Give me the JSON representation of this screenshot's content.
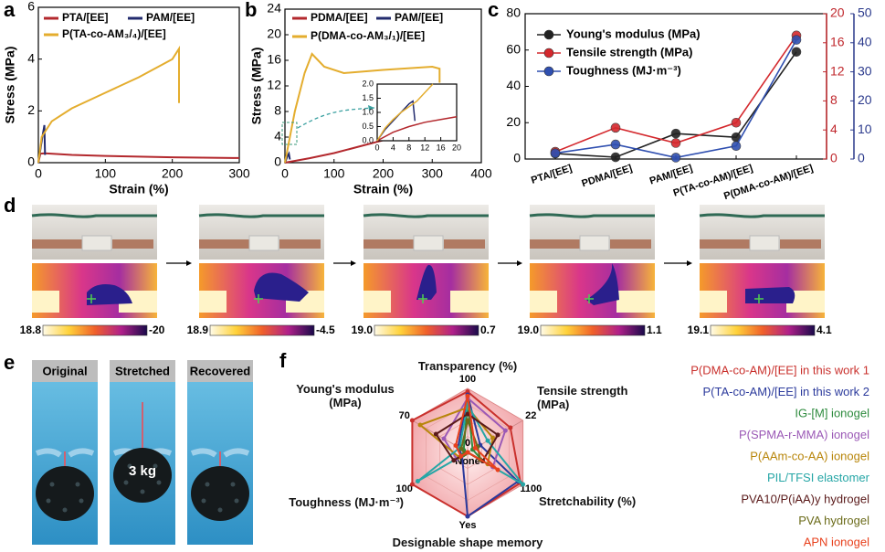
{
  "chart_data": [
    {
      "panel": "a",
      "type": "line",
      "xlabel": "Strain (%)",
      "ylabel": "Stress (MPa)",
      "xlim": [
        0,
        300
      ],
      "xticks": [
        0,
        100,
        200,
        300
      ],
      "ylim": [
        0,
        6
      ],
      "yticks": [
        0,
        2,
        4,
        6
      ],
      "legend": "upper left",
      "series": [
        {
          "name": "PTA/[EE]",
          "color": "#b3282d",
          "x": [
            0,
            3,
            10,
            50,
            100,
            200,
            300
          ],
          "values": [
            0,
            0.35,
            0.36,
            0.3,
            0.26,
            0.21,
            0.18
          ]
        },
        {
          "name": "PAM/[EE]",
          "color": "#222b6e",
          "x": [
            0,
            3,
            6,
            8,
            9,
            10
          ],
          "values": [
            0,
            0.5,
            1.0,
            1.3,
            1.45,
            0.3
          ]
        },
        {
          "name": "P(TA-co-AM₃/₄)/[EE]",
          "color": "#e4ad2e",
          "x": [
            0,
            5,
            20,
            50,
            100,
            150,
            200,
            210,
            210
          ],
          "values": [
            0,
            1.0,
            1.6,
            2.1,
            2.7,
            3.3,
            4.0,
            4.4,
            2.3
          ]
        }
      ]
    },
    {
      "panel": "b",
      "type": "line",
      "xlabel": "Strain (%)",
      "ylabel": "Stress (MPa)",
      "xlim": [
        0,
        400
      ],
      "xticks": [
        0,
        100,
        200,
        300,
        400
      ],
      "ylim": [
        0,
        24
      ],
      "yticks": [
        0,
        4,
        8,
        12,
        16,
        20,
        24
      ],
      "legend": "upper right",
      "series": [
        {
          "name": "PDMA/[EE]",
          "color": "#b3282d",
          "x": [
            0,
            50,
            100,
            150,
            200,
            215,
            215
          ],
          "values": [
            0,
            0.7,
            1.5,
            2.5,
            3.5,
            4.2,
            3.4
          ]
        },
        {
          "name": "PAM/[EE]",
          "color": "#222b6e",
          "x": [
            0,
            5,
            8,
            10
          ],
          "values": [
            0,
            1.0,
            1.4,
            0.5
          ]
        },
        {
          "name": "P(DMA-co-AM₃/₁)/[EE]",
          "color": "#e4ad2e",
          "x": [
            0,
            20,
            40,
            55,
            80,
            120,
            200,
            300,
            315,
            315
          ],
          "values": [
            0,
            8,
            14,
            17,
            15,
            14,
            14.5,
            15,
            14.7,
            12.5
          ]
        }
      ],
      "inset": {
        "xlim": [
          0,
          20
        ],
        "xticks": [
          0,
          4,
          8,
          12,
          16,
          20
        ],
        "ylim": [
          0,
          2
        ],
        "yticks": [
          {
            "value": 0,
            "label": "0.0"
          },
          {
            "value": 0.5,
            "label": "0.5"
          },
          {
            "value": 1,
            "label": "1.0"
          },
          {
            "value": 1.5,
            "label": "1.5"
          },
          {
            "value": 2,
            "label": "2.0"
          }
        ],
        "series": [
          {
            "color": "#b3282d",
            "x": [
              0,
              4,
              8,
              12,
              16,
              20
            ],
            "values": [
              0,
              0.3,
              0.5,
              0.65,
              0.75,
              0.85
            ]
          },
          {
            "color": "#222b6e",
            "x": [
              0,
              2,
              4,
              6,
              8,
              9,
              9.5
            ],
            "values": [
              0,
              0.4,
              0.7,
              1.0,
              1.3,
              1.4,
              0.7
            ]
          },
          {
            "color": "#e4ad2e",
            "x": [
              0,
              2,
              4,
              6,
              8,
              10,
              12,
              14
            ],
            "values": [
              0,
              0.45,
              0.75,
              1.0,
              1.2,
              1.4,
              1.7,
              2.0
            ]
          }
        ]
      }
    },
    {
      "panel": "c",
      "type": "line",
      "categories": [
        "PTA/[EE]",
        "PDMA/[EE]",
        "PAM/[EE]",
        "P(TA-co-AM)/[EE]",
        "P(DMA-co-AM)/[EE]"
      ],
      "ylim": [
        0,
        80
      ],
      "yticks": [
        0,
        20,
        40,
        60,
        80
      ],
      "y2lim": [
        0,
        20
      ],
      "y2ticks": [
        0,
        4,
        8,
        12,
        16,
        20
      ],
      "y2color": "#c0282d",
      "y3lim": [
        0,
        50
      ],
      "y3ticks": [
        0,
        10,
        20,
        30,
        40,
        50
      ],
      "y3color": "#2b3a8c",
      "legend": "upper left",
      "series": [
        {
          "name": "Young's modulus (MPa)",
          "color": "#222222",
          "values": [
            3,
            1,
            14,
            12,
            59
          ]
        },
        {
          "name": "Tensile strength (MPa)",
          "color": "#d4282d",
          "axis": "y2",
          "values": [
            1.0,
            4.3,
            2.2,
            5.0,
            17
          ]
        },
        {
          "name": "Toughness (MJ·m⁻³)",
          "color": "#2f4fb0",
          "axis": "y3",
          "values": [
            2,
            5,
            0.5,
            4.5,
            41
          ]
        }
      ]
    },
    {
      "panel": "f",
      "type": "radar",
      "axes": [
        {
          "name": "Transparency (%)",
          "lim": [
            0,
            100
          ],
          "ticks": [
            0,
            100
          ]
        },
        {
          "name": "Tensile strength (MPa)",
          "lim": [
            0,
            22
          ],
          "ticks": [
            22
          ]
        },
        {
          "name": "Stretchability (%)",
          "lim": [
            0,
            1100
          ],
          "ticks": [
            1100
          ]
        },
        {
          "name": "Designable shape memory",
          "lim": [
            0,
            1
          ],
          "ticks": [
            {
              "value": 0,
              "label": "None"
            },
            {
              "value": 1,
              "label": "Yes"
            }
          ]
        },
        {
          "name": "Toughness (MJ·m⁻³)",
          "lim": [
            0,
            100
          ],
          "ticks": [
            100
          ]
        },
        {
          "name": "Young's modulus (MPa)",
          "lim": [
            0,
            70
          ],
          "ticks": [
            0,
            70
          ]
        }
      ],
      "series": [
        {
          "name": "P(DMA-co-AM)/[EE] in this work 1",
          "color": "#c9302c",
          "values": [
            95,
            17,
            1050,
            1,
            100,
            70
          ]
        },
        {
          "name": "P(TA-co-AM)/[EE] in this work 2",
          "color": "#2b3a9c",
          "values": [
            90,
            5,
            1000,
            1,
            10,
            12
          ]
        },
        {
          "name": "IG-[M] ionogel",
          "color": "#2e8b3e",
          "values": [
            80,
            2,
            300,
            0,
            8,
            5
          ]
        },
        {
          "name": "P(SPMA-r-MMA) ionogel",
          "color": "#9b59b6",
          "values": [
            85,
            15,
            500,
            0,
            20,
            30
          ]
        },
        {
          "name": "P(AAm-co-AA) ionogel",
          "color": "#b8860b",
          "values": [
            70,
            10,
            400,
            0,
            15,
            60
          ]
        },
        {
          "name": "PIL/TFSI elastomer",
          "color": "#26a6a6",
          "values": [
            75,
            8,
            1100,
            0,
            90,
            10
          ]
        },
        {
          "name": "PVA10/P(iAA)y hydrogel",
          "color": "#5a1a1a",
          "values": [
            60,
            12,
            300,
            0,
            25,
            40
          ]
        },
        {
          "name": "PVA hydrogel",
          "color": "#6b6b1a",
          "values": [
            50,
            4,
            250,
            0,
            5,
            8
          ]
        },
        {
          "name": "APN ionogel",
          "color": "#e8401c",
          "values": [
            88,
            3,
            600,
            0,
            12,
            15
          ]
        }
      ]
    }
  ],
  "photo_panels": {
    "d": {
      "panel": "d",
      "colorbars": [
        {
          "left": "18.8",
          "right": "-20"
        },
        {
          "left": "18.9",
          "right": "-4.5"
        },
        {
          "left": "19.0",
          "right": "0.7"
        },
        {
          "left": "19.0",
          "right": "1.1"
        },
        {
          "left": "19.1",
          "right": "4.1"
        }
      ]
    },
    "e": {
      "panel": "e",
      "headers": [
        "Original",
        "Stretched",
        "Recovered"
      ],
      "weight": "3 kg"
    }
  }
}
